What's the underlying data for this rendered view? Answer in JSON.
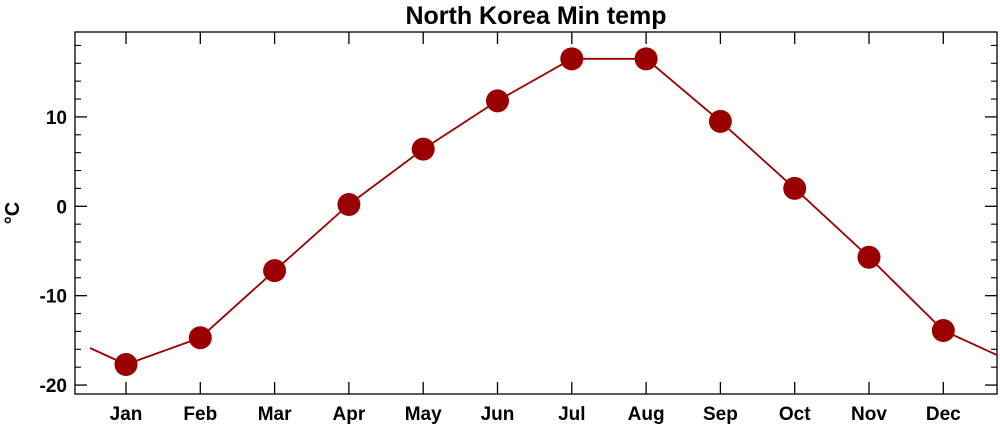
{
  "chart_data": {
    "type": "line",
    "title": "North Korea Min temp",
    "xlabel": "",
    "ylabel": "°C",
    "categories": [
      "Jan",
      "Feb",
      "Mar",
      "Apr",
      "May",
      "Jun",
      "Jul",
      "Aug",
      "Sep",
      "Oct",
      "Nov",
      "Dec"
    ],
    "series": [
      {
        "values": [
          -17.7,
          -14.7,
          -7.2,
          0.2,
          6.4,
          11.8,
          16.5,
          16.5,
          9.5,
          2.0,
          -5.7,
          -13.9
        ]
      }
    ],
    "ylim": [
      -21,
      19.5
    ],
    "yticks": [
      -20,
      -10,
      0,
      10
    ],
    "ytick_labels": [
      "-20",
      "-10",
      "0",
      "10"
    ],
    "grid": false,
    "legend": "none",
    "colors": {
      "series": "#9b0000",
      "axis": "#000000"
    }
  }
}
